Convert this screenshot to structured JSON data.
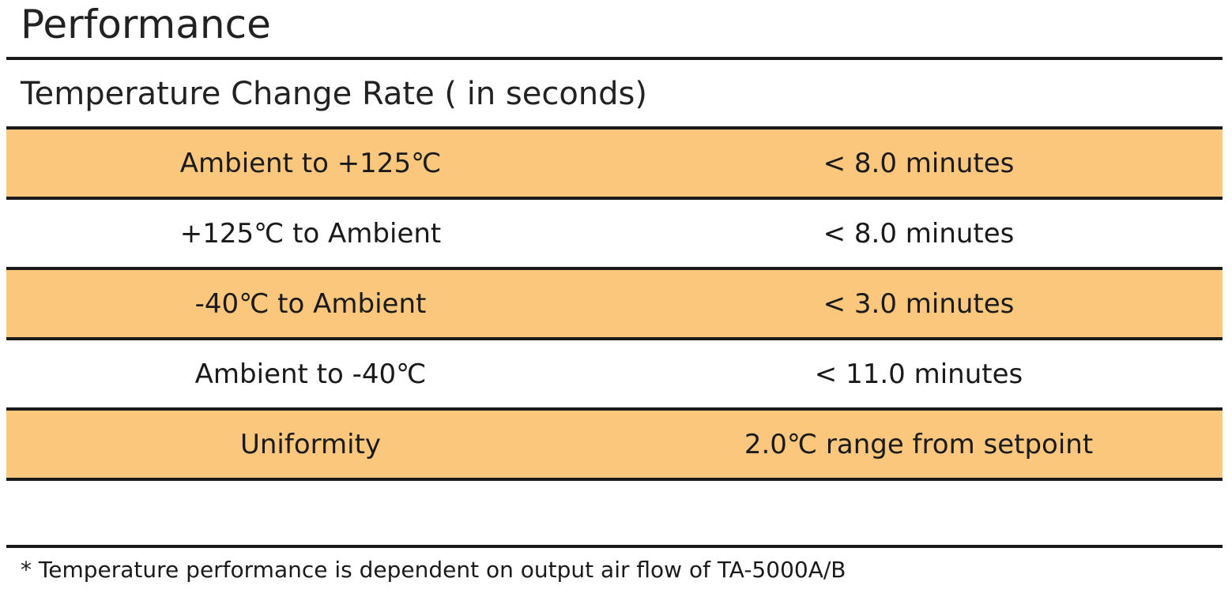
{
  "title": "Performance",
  "section": "Temperature Change Rate ( in seconds)",
  "rows": [
    {
      "label": "Ambient to +125℃",
      "value": "< 8.0 minutes",
      "shaded": true
    },
    {
      "label": "+125℃ to Ambient",
      "value": "< 8.0 minutes",
      "shaded": false
    },
    {
      "label": "-40℃ to Ambient",
      "value": "< 3.0 minutes",
      "shaded": true
    },
    {
      "label": "Ambient to -40℃",
      "value": "< 11.0 minutes",
      "shaded": false
    },
    {
      "label": "Uniformity",
      "value": "2.0℃ range from setpoint",
      "shaded": true
    }
  ],
  "footnote": "* Temperature performance is dependent on output air flow of TA-5000A/B",
  "colors": {
    "row_shade": "#fbc77d",
    "rule": "#1a1a1a"
  }
}
